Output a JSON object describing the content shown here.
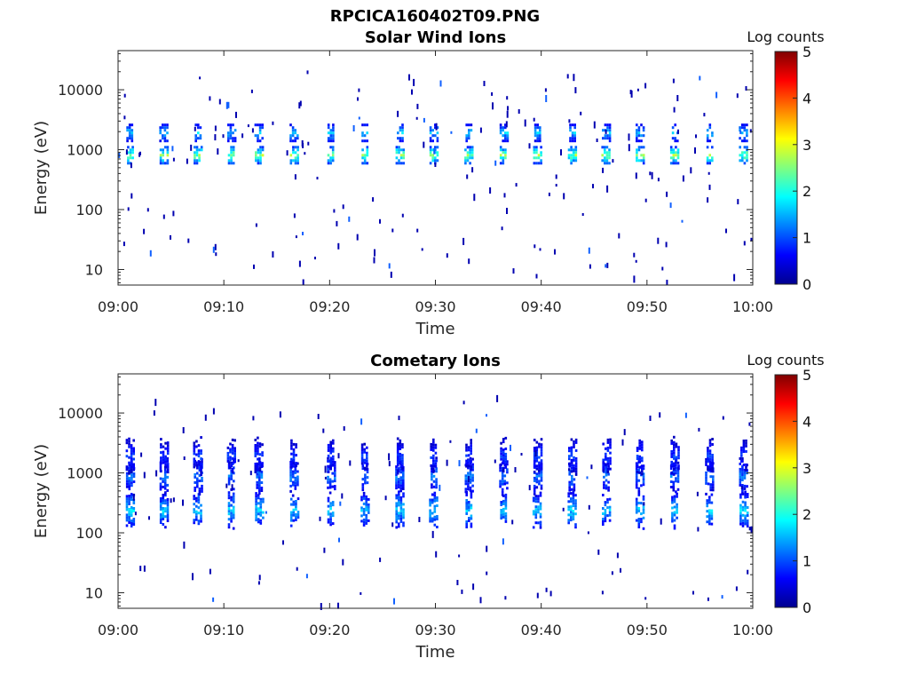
{
  "figure_title": "RPCICA160402T09.PNG",
  "chart_data": [
    {
      "type": "heatmap",
      "title": "Solar Wind Ions",
      "xlabel": "Time",
      "ylabel": "Energy (eV)",
      "x_ticks": [
        "09:00",
        "09:10",
        "09:20",
        "09:30",
        "09:40",
        "09:50",
        "10:00"
      ],
      "x_range_minutes": [
        0,
        60
      ],
      "y_scale": "log",
      "y_ticks": [
        "10",
        "100",
        "1000",
        "10000"
      ],
      "y_range_ev": [
        5.5,
        45000
      ],
      "colorbar": {
        "label": "Log counts",
        "range": [
          0,
          5
        ],
        "ticks": [
          "0",
          "1",
          "2",
          "3",
          "4",
          "5"
        ]
      },
      "scan_times_minutes": [
        1.1,
        4.3,
        7.5,
        10.7,
        13.3,
        16.6,
        20.1,
        23.3,
        26.6,
        29.8,
        33.1,
        36.4,
        39.6,
        42.9,
        46.1,
        49.3,
        52.6,
        55.9,
        59.1
      ],
      "peaks": [
        {
          "center_ev": 850,
          "log_counts": 2.7
        },
        {
          "center_ev": 2000,
          "log_counts": 1.7
        }
      ],
      "grid": false
    },
    {
      "type": "heatmap",
      "title": "Cometary Ions",
      "xlabel": "Time",
      "ylabel": "Energy (eV)",
      "x_ticks": [
        "09:00",
        "09:10",
        "09:20",
        "09:30",
        "09:40",
        "09:50",
        "10:00"
      ],
      "x_range_minutes": [
        0,
        60
      ],
      "y_scale": "log",
      "y_ticks": [
        "10",
        "100",
        "1000",
        "10000"
      ],
      "y_range_ev": [
        5.5,
        45000
      ],
      "colorbar": {
        "label": "Log counts",
        "range": [
          0,
          5
        ],
        "ticks": [
          "0",
          "1",
          "2",
          "3",
          "4",
          "5"
        ]
      },
      "scan_times_minutes": [
        1.1,
        4.3,
        7.5,
        10.7,
        13.3,
        16.6,
        20.1,
        23.3,
        26.6,
        29.8,
        33.1,
        36.4,
        39.6,
        42.9,
        46.1,
        49.3,
        52.6,
        55.9,
        59.1
      ],
      "peaks": [
        {
          "center_ev": 250,
          "log_counts": 1.8
        },
        {
          "center_ev": 900,
          "log_counts": 1.3
        },
        {
          "center_ev": 2000,
          "log_counts": 1.0
        }
      ],
      "grid": false
    }
  ]
}
